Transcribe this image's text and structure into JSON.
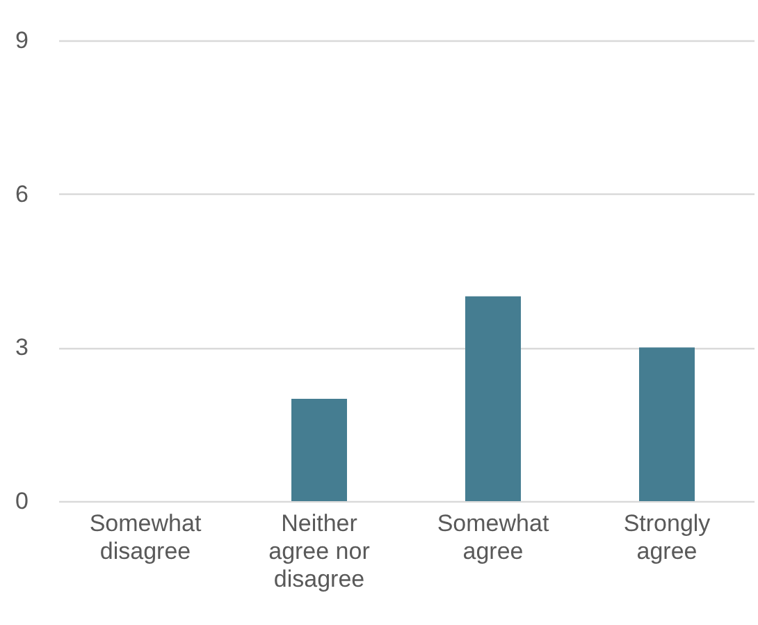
{
  "chart_data": {
    "type": "bar",
    "categories": [
      "Somewhat disagree",
      "Neither agree nor disagree",
      "Somewhat agree",
      "Strongly agree"
    ],
    "values": [
      0,
      2,
      4,
      3
    ],
    "color": "#457d91",
    "ylim": [
      0,
      9
    ],
    "yticks": [
      0,
      3,
      6,
      9
    ],
    "grid": "y"
  }
}
